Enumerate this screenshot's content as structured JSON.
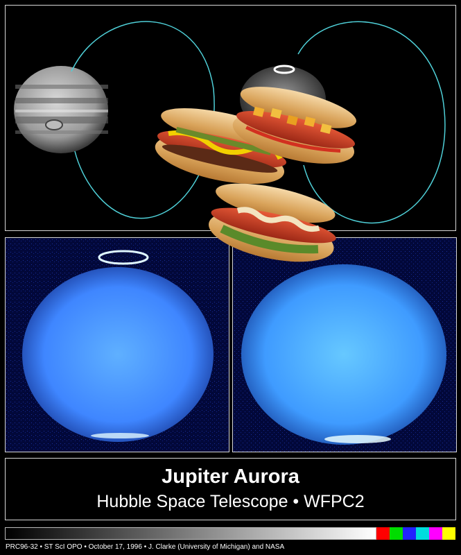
{
  "title": "Jupiter Aurora",
  "subtitle": "Hubble Space Telescope • WFPC2",
  "credit": "PRC96-32 • ST ScI OPO • October 17, 1996 • J. Clarke (University of Michigan) and NASA",
  "colors": {
    "background": "#000000",
    "frame": "#d8d8d8",
    "orbit": "#4fd0d8",
    "uv_planet": "#3a7dff",
    "swatches": [
      "#ff0000",
      "#00dd00",
      "#2222ff",
      "#00dddd",
      "#ff00ff",
      "#ffff00"
    ]
  },
  "images": {
    "top": "Jupiter visible-light image and ultraviolet aurora image with orbit curves, overlaid with three hot dogs",
    "left": "Ultraviolet image of Jupiter with northern aurora",
    "right": "Ultraviolet image of Jupiter with southern aurora"
  }
}
